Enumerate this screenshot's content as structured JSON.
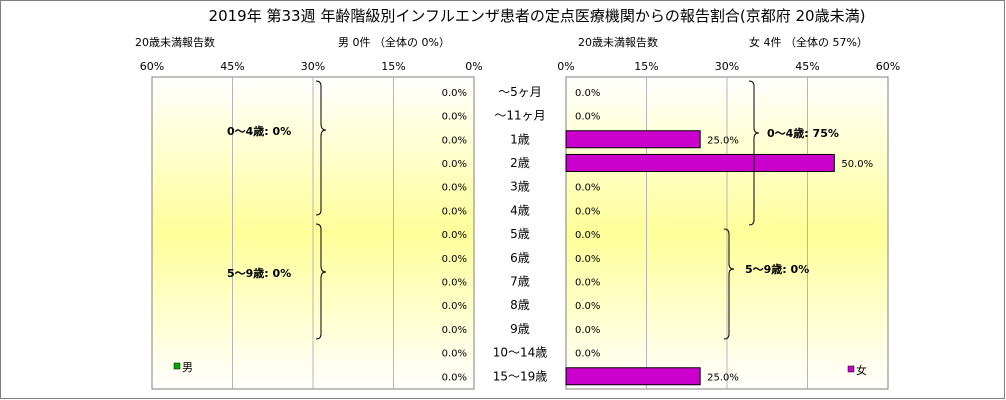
{
  "title": "2019年 第33週 年齢階級別インフルエンザ患者の定点医療機関からの報告割合(京都府 20歳未満)",
  "left_panel": {
    "caption": "20歳未満報告数",
    "summary": "男 0件 （全体の 0%）",
    "legend": "男",
    "legend_color": "#00aa00",
    "group_labels": [
      "0～4歳: 0%",
      "5～9歳: 0%"
    ]
  },
  "right_panel": {
    "caption": "20歳未満報告数",
    "summary": "女 4件 （全体の 57%）",
    "legend": "女",
    "legend_color": "#cc00cc",
    "group_labels": [
      "0～4歳: 75%",
      "5～9歳: 0%"
    ]
  },
  "chart_data": {
    "type": "bar",
    "orientation": "horizontal",
    "categories": [
      "～5ヶ月",
      "～11ヶ月",
      "1歳",
      "2歳",
      "3歳",
      "4歳",
      "5歳",
      "6歳",
      "7歳",
      "8歳",
      "9歳",
      "10～14歳",
      "15～19歳"
    ],
    "series": [
      {
        "name": "男",
        "values": [
          0,
          0,
          0,
          0,
          0,
          0,
          0,
          0,
          0,
          0,
          0,
          0,
          0
        ],
        "labels": [
          "0.0%",
          "0.0%",
          "0.0%",
          "0.0%",
          "0.0%",
          "0.0%",
          "0.0%",
          "0.0%",
          "0.0%",
          "0.0%",
          "0.0%",
          "0.0%",
          "0.0%"
        ]
      },
      {
        "name": "女",
        "values": [
          0,
          0,
          25,
          50,
          0,
          0,
          0,
          0,
          0,
          0,
          0,
          0,
          25
        ],
        "labels": [
          "0.0%",
          "0.0%",
          "25.0%",
          "50.0%",
          "0.0%",
          "0.0%",
          "0.0%",
          "0.0%",
          "0.0%",
          "0.0%",
          "0.0%",
          "0.0%",
          "25.0%"
        ]
      }
    ],
    "left_ticks": [
      "60%",
      "45%",
      "30%",
      "15%",
      "0%"
    ],
    "right_ticks": [
      "0%",
      "15%",
      "30%",
      "45%",
      "60%"
    ],
    "xlim": [
      0,
      60
    ],
    "bar_color": "#cc00cc",
    "grid": true
  }
}
